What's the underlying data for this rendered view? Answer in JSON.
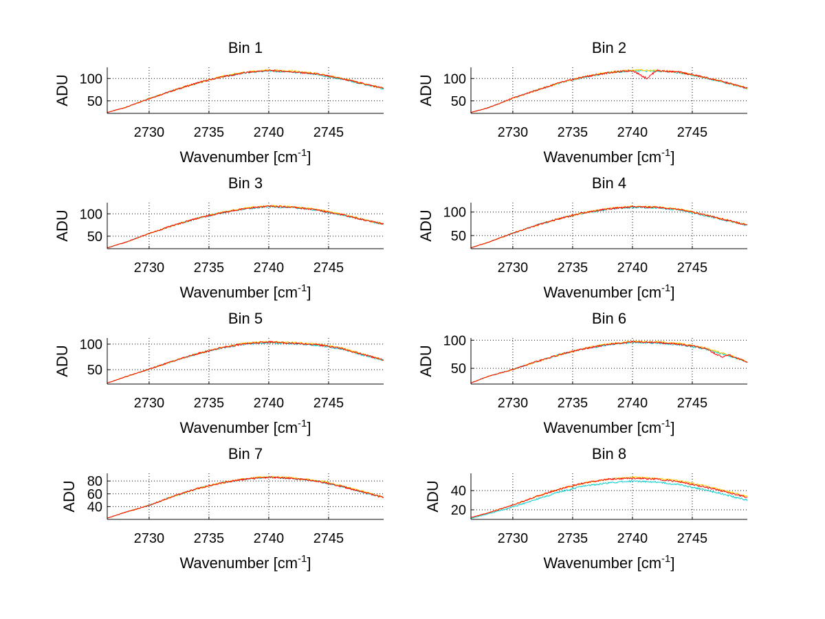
{
  "chart_data": [
    {
      "type": "line",
      "title": "Bin 1",
      "xlabel": "Wavenumber [cm",
      "xlabel_sup": "-1",
      "xlabel_close": "]",
      "ylabel": "ADU",
      "xlim": [
        2726.5,
        2749.6
      ],
      "ylim": [
        22,
        125
      ],
      "xticks": [
        2730,
        2735,
        2740,
        2745
      ],
      "yticks": [
        50,
        100
      ],
      "grid": true,
      "series": [
        {
          "color": "#ff0000",
          "x": [
            2726.5,
            2728,
            2730,
            2732,
            2734,
            2736,
            2738,
            2740,
            2742,
            2744,
            2746,
            2748,
            2749.6
          ],
          "y": [
            24,
            35,
            55,
            73,
            90,
            103,
            113,
            118,
            115,
            110,
            100,
            88,
            78
          ]
        },
        {
          "color": "#ffcc00",
          "x": [
            2726.5,
            2728,
            2730,
            2732,
            2734,
            2736,
            2738,
            2740,
            2742,
            2744,
            2746,
            2748,
            2749.6
          ],
          "y": [
            24,
            35,
            55,
            73,
            90,
            104,
            114,
            119,
            117,
            111,
            101,
            88,
            78
          ]
        },
        {
          "color": "#00cccc",
          "x": [
            2726.5,
            2728,
            2730,
            2732,
            2734,
            2736,
            2738,
            2740,
            2742,
            2744,
            2746,
            2748,
            2749.6
          ],
          "y": [
            24,
            35,
            55,
            73,
            90,
            103,
            113,
            117,
            114,
            109,
            99,
            87,
            77
          ]
        }
      ]
    },
    {
      "type": "line",
      "title": "Bin 2",
      "xlabel": "Wavenumber [cm",
      "xlabel_sup": "-1",
      "xlabel_close": "]",
      "ylabel": "ADU",
      "xlim": [
        2726.5,
        2749.6
      ],
      "ylim": [
        22,
        125
      ],
      "xticks": [
        2730,
        2735,
        2740,
        2745
      ],
      "yticks": [
        50,
        100
      ],
      "grid": true,
      "series": [
        {
          "color": "#ff0000",
          "x": [
            2726.5,
            2728,
            2730,
            2732,
            2734,
            2736,
            2738,
            2740,
            2741.2,
            2742,
            2744,
            2746,
            2748,
            2749.6
          ],
          "y": [
            24,
            35,
            56,
            74,
            91,
            104,
            113,
            118,
            100,
            118,
            114,
            103,
            90,
            78
          ]
        },
        {
          "color": "#ffcc00",
          "x": [
            2726.5,
            2728,
            2730,
            2732,
            2734,
            2736,
            2738,
            2740,
            2742,
            2744,
            2746,
            2748,
            2749.6
          ],
          "y": [
            24,
            35,
            56,
            74,
            91,
            104,
            114,
            119,
            118,
            114,
            103,
            90,
            78
          ]
        },
        {
          "color": "#00cccc",
          "x": [
            2726.5,
            2728,
            2730,
            2732,
            2734,
            2736,
            2738,
            2740,
            2742,
            2744,
            2746,
            2748,
            2749.6
          ],
          "y": [
            24,
            35,
            56,
            74,
            91,
            103,
            113,
            117,
            117,
            113,
            102,
            89,
            77
          ]
        }
      ]
    },
    {
      "type": "line",
      "title": "Bin 3",
      "xlabel": "Wavenumber [cm",
      "xlabel_sup": "-1",
      "xlabel_close": "]",
      "ylabel": "ADU",
      "xlim": [
        2726.5,
        2749.6
      ],
      "ylim": [
        22,
        125
      ],
      "xticks": [
        2730,
        2735,
        2740,
        2745
      ],
      "yticks": [
        50,
        100
      ],
      "grid": true,
      "series": [
        {
          "color": "#ff0000",
          "x": [
            2726.5,
            2728,
            2730,
            2732,
            2734,
            2736,
            2738,
            2740,
            2742,
            2744,
            2746,
            2748,
            2749.6
          ],
          "y": [
            24,
            36,
            56,
            74,
            90,
            102,
            112,
            117,
            115,
            109,
            99,
            86,
            77
          ]
        },
        {
          "color": "#ffcc00",
          "x": [
            2726.5,
            2728,
            2730,
            2732,
            2734,
            2736,
            2738,
            2740,
            2742,
            2744,
            2746,
            2748,
            2749.6
          ],
          "y": [
            24,
            36,
            56,
            74,
            90,
            103,
            113,
            118,
            116,
            110,
            100,
            87,
            77
          ]
        },
        {
          "color": "#00cccc",
          "x": [
            2726.5,
            2728,
            2730,
            2732,
            2734,
            2736,
            2738,
            2740,
            2742,
            2744,
            2746,
            2748,
            2749.6
          ],
          "y": [
            24,
            36,
            56,
            74,
            90,
            102,
            111,
            116,
            114,
            108,
            98,
            86,
            76
          ]
        }
      ]
    },
    {
      "type": "line",
      "title": "Bin 4",
      "xlabel": "Wavenumber [cm",
      "xlabel_sup": "-1",
      "xlabel_close": "]",
      "ylabel": "ADU",
      "xlim": [
        2726.5,
        2749.6
      ],
      "ylim": [
        22,
        120
      ],
      "xticks": [
        2730,
        2735,
        2740,
        2745
      ],
      "yticks": [
        50,
        100
      ],
      "grid": true,
      "series": [
        {
          "color": "#ff0000",
          "x": [
            2726.5,
            2728,
            2730,
            2732,
            2734,
            2736,
            2738,
            2740,
            2742,
            2744,
            2746,
            2748,
            2749.6
          ],
          "y": [
            24,
            36,
            55,
            72,
            87,
            99,
            107,
            111,
            110,
            105,
            94,
            82,
            73
          ]
        },
        {
          "color": "#ffcc00",
          "x": [
            2726.5,
            2728,
            2730,
            2732,
            2734,
            2736,
            2738,
            2740,
            2742,
            2744,
            2746,
            2748,
            2749.6
          ],
          "y": [
            24,
            36,
            55,
            72,
            87,
            99,
            108,
            112,
            111,
            106,
            95,
            82,
            73
          ]
        },
        {
          "color": "#00cccc",
          "x": [
            2726.5,
            2728,
            2730,
            2732,
            2734,
            2736,
            2738,
            2740,
            2742,
            2744,
            2746,
            2748,
            2749.6
          ],
          "y": [
            24,
            36,
            55,
            72,
            87,
            98,
            106,
            110,
            109,
            104,
            93,
            81,
            72
          ]
        }
      ]
    },
    {
      "type": "line",
      "title": "Bin 5",
      "xlabel": "Wavenumber [cm",
      "xlabel_sup": "-1",
      "xlabel_close": "]",
      "ylabel": "ADU",
      "xlim": [
        2726.5,
        2749.6
      ],
      "ylim": [
        22,
        112
      ],
      "xticks": [
        2730,
        2735,
        2740,
        2745
      ],
      "yticks": [
        50,
        100
      ],
      "grid": true,
      "series": [
        {
          "color": "#ff0000",
          "x": [
            2726.5,
            2728,
            2730,
            2732,
            2734,
            2736,
            2738,
            2740,
            2742,
            2744,
            2746,
            2748,
            2749.6
          ],
          "y": [
            24,
            36,
            51,
            67,
            81,
            93,
            101,
            104,
            102,
            99,
            92,
            79,
            69
          ]
        },
        {
          "color": "#ffcc00",
          "x": [
            2726.5,
            2728,
            2730,
            2732,
            2734,
            2736,
            2738,
            2740,
            2742,
            2744,
            2746,
            2748,
            2749.6
          ],
          "y": [
            24,
            36,
            51,
            67,
            81,
            93,
            102,
            105,
            103,
            100,
            93,
            80,
            69
          ]
        },
        {
          "color": "#00cccc",
          "x": [
            2726.5,
            2728,
            2730,
            2732,
            2734,
            2736,
            2738,
            2740,
            2742,
            2744,
            2746,
            2748,
            2749.6
          ],
          "y": [
            24,
            36,
            51,
            67,
            81,
            92,
            100,
            103,
            101,
            98,
            91,
            78,
            68
          ]
        }
      ]
    },
    {
      "type": "line",
      "title": "Bin 6",
      "xlabel": "Wavenumber [cm",
      "xlabel_sup": "-1",
      "xlabel_close": "]",
      "ylabel": "ADU",
      "xlim": [
        2726.5,
        2749.6
      ],
      "ylim": [
        22,
        104
      ],
      "xticks": [
        2730,
        2735,
        2740,
        2745
      ],
      "yticks": [
        50,
        100
      ],
      "grid": true,
      "series": [
        {
          "color": "#ff0000",
          "x": [
            2726.5,
            2728,
            2730,
            2732,
            2734,
            2736,
            2738,
            2740,
            2742,
            2744,
            2746,
            2747.5,
            2748,
            2749.6
          ],
          "y": [
            24,
            36,
            48,
            62,
            75,
            85,
            93,
            97,
            96,
            93,
            86,
            70,
            74,
            61
          ]
        },
        {
          "color": "#ffcc00",
          "x": [
            2726.5,
            2728,
            2730,
            2732,
            2734,
            2736,
            2738,
            2740,
            2742,
            2744,
            2746,
            2748,
            2749.6
          ],
          "y": [
            24,
            36,
            48,
            62,
            75,
            86,
            94,
            98,
            97,
            94,
            87,
            74,
            62
          ]
        },
        {
          "color": "#00cccc",
          "x": [
            2726.5,
            2728,
            2730,
            2732,
            2734,
            2736,
            2738,
            2740,
            2742,
            2744,
            2746,
            2748,
            2749.6
          ],
          "y": [
            24,
            36,
            48,
            62,
            75,
            85,
            92,
            96,
            95,
            92,
            85,
            73,
            61
          ]
        }
      ]
    },
    {
      "type": "line",
      "title": "Bin 7",
      "xlabel": "Wavenumber [cm",
      "xlabel_sup": "-1",
      "xlabel_close": "]",
      "ylabel": "ADU",
      "xlim": [
        2726.5,
        2749.6
      ],
      "ylim": [
        20,
        92
      ],
      "xticks": [
        2730,
        2735,
        2740,
        2745
      ],
      "yticks": [
        40,
        60,
        80
      ],
      "grid": true,
      "series": [
        {
          "color": "#ff0000",
          "x": [
            2726.5,
            2728,
            2730,
            2732,
            2734,
            2736,
            2738,
            2740,
            2742,
            2744,
            2746,
            2748,
            2749.6
          ],
          "y": [
            22,
            31,
            42,
            56,
            68,
            77,
            83,
            86,
            84,
            80,
            72,
            62,
            54
          ]
        },
        {
          "color": "#ffcc00",
          "x": [
            2726.5,
            2728,
            2730,
            2732,
            2734,
            2736,
            2738,
            2740,
            2742,
            2744,
            2746,
            2748,
            2749.6
          ],
          "y": [
            22,
            31,
            42,
            56,
            68,
            77,
            84,
            87,
            85,
            81,
            73,
            63,
            55
          ]
        },
        {
          "color": "#00cccc",
          "x": [
            2726.5,
            2728,
            2730,
            2732,
            2734,
            2736,
            2738,
            2740,
            2742,
            2744,
            2746,
            2748,
            2749.6
          ],
          "y": [
            22,
            31,
            42,
            56,
            68,
            77,
            83,
            86,
            84,
            80,
            72,
            62,
            54
          ]
        }
      ]
    },
    {
      "type": "line",
      "title": "Bin 8",
      "xlabel": "Wavenumber [cm",
      "xlabel_sup": "-1",
      "xlabel_close": "]",
      "ylabel": "ADU",
      "xlim": [
        2726.5,
        2749.6
      ],
      "ylim": [
        10,
        58
      ],
      "xticks": [
        2730,
        2735,
        2740,
        2745
      ],
      "yticks": [
        20,
        40
      ],
      "grid": true,
      "series": [
        {
          "color": "#ff0000",
          "x": [
            2726.5,
            2728,
            2730,
            2732,
            2734,
            2736,
            2738,
            2740,
            2742,
            2744,
            2746,
            2748,
            2749.6
          ],
          "y": [
            12,
            17,
            25,
            34,
            42,
            48,
            52,
            53,
            52,
            49,
            44,
            38,
            33
          ]
        },
        {
          "color": "#ffcc00",
          "x": [
            2726.5,
            2728,
            2730,
            2732,
            2734,
            2736,
            2738,
            2740,
            2742,
            2744,
            2746,
            2748,
            2749.6
          ],
          "y": [
            12,
            17,
            25,
            34,
            42,
            48,
            52,
            54,
            53,
            50,
            45,
            39,
            34
          ]
        },
        {
          "color": "#00cccc",
          "x": [
            2726.5,
            2728,
            2730,
            2732,
            2734,
            2736,
            2738,
            2740,
            2742,
            2744,
            2746,
            2748,
            2749.6
          ],
          "y": [
            11,
            16,
            23,
            31,
            39,
            45,
            48,
            50,
            49,
            46,
            41,
            35,
            30
          ]
        }
      ]
    }
  ]
}
